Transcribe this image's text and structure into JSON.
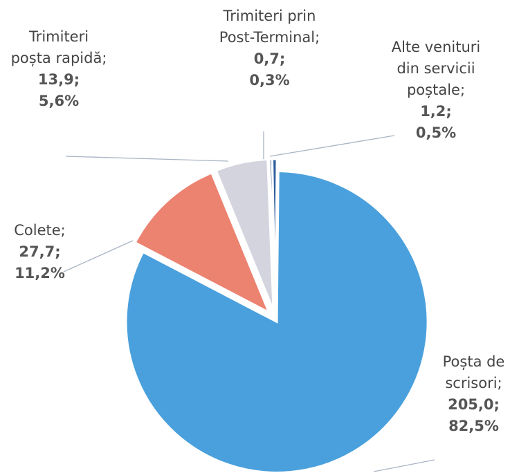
{
  "chart_data": {
    "type": "pie",
    "categories": [
      "Poșta de scrisori;",
      "Colete;",
      "Trimiteri poșta rapidă;",
      "Trimiteri prin Post-Terminal;",
      "Alte venituri din servicii poștale;"
    ],
    "values": [
      205.0,
      27.7,
      13.9,
      0.7,
      1.2
    ],
    "value_labels": [
      "205,0;",
      "27,7;",
      "13,9;",
      "0,7;",
      "1,2;"
    ],
    "percents": [
      82.5,
      11.2,
      5.6,
      0.3,
      0.5
    ],
    "percent_labels": [
      "82,5%",
      "11,2%",
      "5,6%",
      "0,3%",
      "0,5%"
    ],
    "colors": [
      "#4aa0dc",
      "#ec8270",
      "#d3d4de",
      "#1f3f73",
      "#2e5f9e"
    ]
  }
}
